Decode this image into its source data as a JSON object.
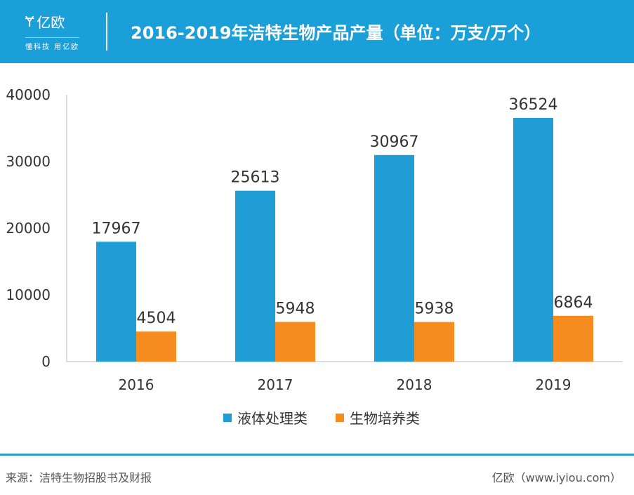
{
  "header": {
    "logo_text": "亿欧",
    "logo_tagline": "懂科技 用亿欧",
    "title": "2016-2019年洁特生物产品产量（单位：万支/万个）"
  },
  "chart_data": {
    "type": "bar",
    "title": "2016-2019年洁特生物产品产量（单位：万支/万个）",
    "categories": [
      "2016",
      "2017",
      "2018",
      "2019"
    ],
    "series": [
      {
        "name": "液体处理类",
        "values": [
          17967,
          25613,
          30967,
          36524
        ],
        "color": "#1f9dd4"
      },
      {
        "name": "生物培养类",
        "values": [
          4504,
          5948,
          5938,
          6864
        ],
        "color": "#f68b1f"
      }
    ],
    "ylim": [
      0,
      40000
    ],
    "yticks": [
      "0",
      "10000",
      "20000",
      "30000",
      "40000"
    ],
    "grid": false,
    "legend": "bottom"
  },
  "footer": {
    "source": "来源：洁特生物招股书及财报",
    "credit": "亿欧（www.iyiou.com）"
  }
}
